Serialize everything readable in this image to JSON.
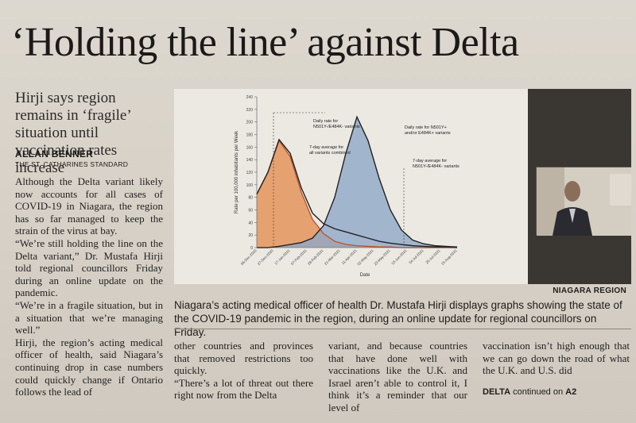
{
  "headline": "‘Holding the line’ against Delta",
  "deck": "Hirji says region remains in ‘fragile’ situation until vaccination rates increase",
  "byline": {
    "author": "ALLAN BENNER",
    "source": "THE ST. CATHARINES STANDARD"
  },
  "photo": {
    "credit": "NIAGARA REGION",
    "caption": "Niagara’s acting medical officer of health Dr. Mustafa Hirji displays graphs showing the state of the COVID-19 pandemic in the region, during an online update for regional councillors on Friday."
  },
  "body": {
    "col1": [
      "Although the Delta variant likely now accounts for all cases of COVID-19 in Niagara, the region has so far managed to keep the strain of the virus at bay.",
      "“We’re still holding the line on the Delta variant,” Dr. Mustafa Hirji told regional councillors Friday during an online update on the pandemic.",
      "“We’re in a fragile situation, but in a situation that we’re managing well.”",
      "Hirji, the region’s acting medical officer of health, said Niagara’s continuing drop in case numbers could quickly change if Ontario follows the lead of"
    ],
    "col2": [
      "other countries and provinces that removed restrictions too quickly.",
      "“There’s a lot of threat out there right now from the Delta"
    ],
    "col3": [
      "variant, and because countries that have done well with vaccinations like the U.K. and Israel aren’t able to control it, I think it’s a reminder that our level of"
    ],
    "col4": [
      "vaccination isn’t high enough that we can go down the road of what the U.K. and U.S. did"
    ]
  },
  "continued": {
    "label": "DELTA",
    "text": "continued on",
    "page": "A2"
  },
  "chart_data": {
    "type": "area",
    "ylabel": "Rate per 100,000 inhabitants per Week",
    "xlabel": "Date",
    "ylim": [
      0,
      240
    ],
    "yticks": [
      0,
      20,
      40,
      60,
      80,
      100,
      120,
      140,
      160,
      180,
      200,
      220,
      240
    ],
    "x": [
      "2020-12-06",
      "2020-12-20",
      "2021-01-03",
      "2021-01-17",
      "2021-01-31",
      "2021-02-14",
      "2021-02-28",
      "2021-03-14",
      "2021-03-28",
      "2021-04-11",
      "2021-04-25",
      "2021-05-09",
      "2021-05-23",
      "2021-06-06",
      "2021-06-20",
      "2021-07-04",
      "2021-07-18",
      "2021-08-01",
      "2021-08-15"
    ],
    "xticks": [
      "06-Dec-2020",
      "27-Dec-2020",
      "17-Jan-2021",
      "07-Feb-2021",
      "28-Feb-2021",
      "21-Mar-2021",
      "11-Apr-2021",
      "02-May-2021",
      "23-May-2021",
      "13-Jun-2021",
      "04-Jul-2021",
      "25-Jul-2021",
      "15-Aug-2021"
    ],
    "series": [
      {
        "name": "7-day average for all variants combined",
        "values": [
          85,
          120,
          172,
          150,
          95,
          55,
          38,
          30,
          25,
          20,
          15,
          10,
          7,
          5,
          3,
          2,
          1,
          1,
          0
        ]
      },
      {
        "name": "7-day average for N501Y-/E484K- variants",
        "values": [
          85,
          120,
          170,
          145,
          88,
          45,
          22,
          10,
          5,
          3,
          2,
          1,
          1,
          0,
          0,
          0,
          0,
          0,
          0
        ]
      },
      {
        "name": "Daily rate for N501Y+ and/or E484K+ variants",
        "values": [
          0,
          0,
          2,
          5,
          8,
          15,
          35,
          80,
          150,
          208,
          170,
          110,
          60,
          28,
          12,
          6,
          3,
          2,
          1
        ]
      }
    ],
    "annotations": [
      "Daily rate for N501Y-/E484K- variants",
      "7-day average for all variants combined",
      "Daily rate for N501Y+ and/or E484K+ variants",
      "7-day average for N501Y-/E484K- variants"
    ],
    "colors": {
      "orange": "#e48a4a",
      "blue": "#8ea7c8",
      "line": "#222222"
    }
  }
}
